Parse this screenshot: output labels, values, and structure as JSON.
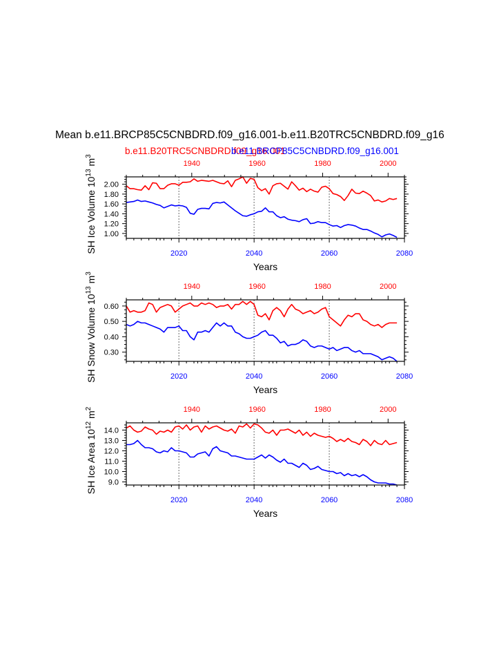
{
  "title": "Mean b.e11.BRCP85C5CNBDRD.f09_g16.001-b.e11.B20TRC5CNBDRD.f09_g16",
  "legend": {
    "red_label": "b.e11.B20TRC5CNBDRD.f09_g16.001",
    "blue_label": "b.e11.BRCP85C5CNBDRD.f09_g16.001"
  },
  "colors": {
    "red": "#ff0000",
    "blue": "#0000ff",
    "axis": "#000000",
    "ref_line": "#8c8c8c"
  },
  "chart_data": [
    {
      "type": "line",
      "ylabel_main": "SH Ice Volume 10",
      "ylabel_exp": "13",
      "ylabel_unit": " m",
      "ylabel_unit_exp": "3",
      "xlabel": "Years",
      "xlim": [
        2006,
        2080
      ],
      "top_xlim": [
        1920,
        2005
      ],
      "ylim": [
        0.9,
        2.15
      ],
      "yticks": [
        1.0,
        1.2,
        1.4,
        1.6,
        1.8,
        2.0
      ],
      "ytick_labels": [
        "1.00",
        "1.20",
        "1.40",
        "1.60",
        "1.80",
        "2.00"
      ],
      "bottom_ticks": [
        2020,
        2040,
        2060,
        2080
      ],
      "bottom_tick_labels": [
        "2020",
        "2040",
        "2060",
        "2080"
      ],
      "top_ticks": [
        1940,
        1960,
        1980,
        2000
      ],
      "top_tick_labels": [
        "1940",
        "1960",
        "1980",
        "2000"
      ],
      "ref_lines": [
        2020,
        2040,
        2060
      ],
      "series": [
        {
          "name": "b.e11.B20TRC5CNBDRD.f09_g16.001",
          "color": "red",
          "values": [
            1.97,
            1.91,
            1.91,
            1.89,
            1.88,
            1.97,
            1.89,
            2.03,
            2.02,
            1.91,
            1.91,
            1.98,
            2.01,
            2.01,
            1.98,
            2.04,
            2.04,
            2.05,
            2.11,
            2.06,
            2.08,
            2.07,
            2.06,
            2.08,
            2.05,
            2.02,
            2.01,
            2.07,
            1.95,
            2.08,
            2.11,
            2.15,
            2.02,
            2.12,
            2.1,
            1.93,
            1.87,
            1.91,
            1.8,
            1.97,
            2.01,
            2.02,
            1.96,
            1.9,
            2.05,
            1.97,
            1.88,
            1.92,
            1.85,
            1.9,
            1.86,
            1.84,
            1.94,
            1.96,
            1.91,
            1.81,
            1.79,
            1.75,
            1.67,
            1.77,
            1.9,
            1.82,
            1.81,
            1.86,
            1.82,
            1.77,
            1.66,
            1.68,
            1.64,
            1.66,
            1.71,
            1.69,
            1.71
          ]
        },
        {
          "name": "b.e11.BRCP85C5CNBDRD.f09_g16.001",
          "color": "blue",
          "values": [
            1.63,
            1.64,
            1.65,
            1.68,
            1.65,
            1.66,
            1.64,
            1.62,
            1.59,
            1.57,
            1.52,
            1.55,
            1.58,
            1.56,
            1.57,
            1.56,
            1.53,
            1.41,
            1.39,
            1.49,
            1.51,
            1.51,
            1.5,
            1.61,
            1.63,
            1.62,
            1.64,
            1.58,
            1.52,
            1.46,
            1.41,
            1.36,
            1.35,
            1.38,
            1.4,
            1.44,
            1.45,
            1.52,
            1.44,
            1.44,
            1.36,
            1.32,
            1.34,
            1.29,
            1.27,
            1.26,
            1.24,
            1.28,
            1.3,
            1.2,
            1.21,
            1.24,
            1.22,
            1.22,
            1.18,
            1.15,
            1.16,
            1.12,
            1.16,
            1.18,
            1.17,
            1.15,
            1.11,
            1.08,
            1.08,
            1.05,
            1.01,
            0.98,
            0.93,
            0.97,
            0.99,
            0.96,
            0.92
          ]
        }
      ]
    },
    {
      "type": "line",
      "ylabel_main": "SH Snow Volume 10",
      "ylabel_exp": "13",
      "ylabel_unit": " m",
      "ylabel_unit_exp": "3",
      "xlabel": "Years",
      "xlim": [
        2006,
        2080
      ],
      "top_xlim": [
        1920,
        2005
      ],
      "ylim": [
        0.24,
        0.64
      ],
      "yticks": [
        0.3,
        0.4,
        0.5,
        0.6
      ],
      "ytick_labels": [
        "0.30",
        "0.40",
        "0.50",
        "0.60"
      ],
      "bottom_ticks": [
        2020,
        2040,
        2060,
        2080
      ],
      "bottom_tick_labels": [
        "2020",
        "2040",
        "2060",
        "2080"
      ],
      "top_ticks": [
        1940,
        1960,
        1980,
        2000
      ],
      "top_tick_labels": [
        "1940",
        "1960",
        "1980",
        "2000"
      ],
      "ref_lines": [
        2020,
        2040,
        2060
      ],
      "series": [
        {
          "name": "b.e11.B20TRC5CNBDRD.f09_g16.001",
          "color": "red",
          "values": [
            0.6,
            0.56,
            0.57,
            0.56,
            0.56,
            0.57,
            0.62,
            0.61,
            0.56,
            0.59,
            0.6,
            0.61,
            0.6,
            0.56,
            0.58,
            0.6,
            0.61,
            0.62,
            0.6,
            0.6,
            0.62,
            0.61,
            0.62,
            0.61,
            0.59,
            0.6,
            0.6,
            0.61,
            0.58,
            0.61,
            0.61,
            0.63,
            0.61,
            0.63,
            0.61,
            0.54,
            0.53,
            0.55,
            0.51,
            0.57,
            0.59,
            0.57,
            0.53,
            0.58,
            0.61,
            0.58,
            0.57,
            0.55,
            0.56,
            0.57,
            0.55,
            0.56,
            0.58,
            0.59,
            0.53,
            0.51,
            0.49,
            0.47,
            0.51,
            0.54,
            0.53,
            0.55,
            0.55,
            0.51,
            0.5,
            0.48,
            0.47,
            0.48,
            0.46,
            0.48,
            0.49,
            0.49,
            0.49
          ]
        },
        {
          "name": "b.e11.BRCP85C5CNBDRD.f09_g16.001",
          "color": "blue",
          "values": [
            0.48,
            0.47,
            0.48,
            0.5,
            0.49,
            0.49,
            0.48,
            0.47,
            0.46,
            0.45,
            0.43,
            0.46,
            0.46,
            0.46,
            0.47,
            0.44,
            0.44,
            0.4,
            0.38,
            0.43,
            0.43,
            0.44,
            0.43,
            0.46,
            0.49,
            0.47,
            0.49,
            0.47,
            0.47,
            0.43,
            0.42,
            0.4,
            0.39,
            0.39,
            0.4,
            0.41,
            0.43,
            0.44,
            0.41,
            0.41,
            0.39,
            0.36,
            0.37,
            0.34,
            0.35,
            0.35,
            0.36,
            0.38,
            0.37,
            0.34,
            0.33,
            0.34,
            0.34,
            0.33,
            0.32,
            0.33,
            0.31,
            0.32,
            0.33,
            0.33,
            0.31,
            0.3,
            0.31,
            0.29,
            0.29,
            0.29,
            0.28,
            0.27,
            0.25,
            0.26,
            0.27,
            0.26,
            0.24
          ]
        }
      ]
    },
    {
      "type": "line",
      "ylabel_main": "SH Ice Area 10",
      "ylabel_exp": "12",
      "ylabel_unit": " m",
      "ylabel_unit_exp": "2",
      "xlabel": "Years",
      "xlim": [
        2006,
        2080
      ],
      "top_xlim": [
        1920,
        2005
      ],
      "ylim": [
        8.7,
        14.7
      ],
      "yticks": [
        9.0,
        10.0,
        11.0,
        12.0,
        13.0,
        14.0
      ],
      "ytick_labels": [
        "9.0",
        "10.0",
        "11.0",
        "12.0",
        "13.0",
        "14.0"
      ],
      "bottom_ticks": [
        2020,
        2040,
        2060,
        2080
      ],
      "bottom_tick_labels": [
        "2020",
        "2040",
        "2060",
        "2080"
      ],
      "top_ticks": [
        1940,
        1960,
        1980,
        2000
      ],
      "top_tick_labels": [
        "1940",
        "1960",
        "1980",
        "2000"
      ],
      "ref_lines": [
        2020,
        2040,
        2060
      ],
      "series": [
        {
          "name": "b.e11.B20TRC5CNBDRD.f09_g16.001",
          "color": "red",
          "values": [
            14.2,
            14.4,
            14.0,
            13.8,
            13.9,
            14.3,
            14.1,
            14.0,
            13.6,
            13.9,
            13.8,
            14.0,
            13.8,
            14.3,
            14.4,
            14.1,
            14.5,
            14.0,
            14.3,
            14.4,
            13.8,
            14.4,
            14.1,
            14.3,
            14.4,
            14.2,
            14.0,
            13.9,
            14.1,
            13.7,
            14.4,
            14.3,
            14.6,
            14.2,
            14.6,
            14.5,
            14.2,
            13.8,
            13.7,
            14.0,
            13.5,
            14.0,
            14.0,
            14.1,
            13.9,
            13.7,
            14.0,
            13.5,
            13.8,
            13.4,
            13.7,
            13.5,
            13.4,
            13.3,
            13.4,
            13.2,
            12.9,
            13.1,
            12.9,
            13.2,
            12.9,
            12.8,
            12.6,
            13.1,
            12.9,
            12.5,
            13.0,
            12.7,
            12.6,
            13.0,
            12.6,
            12.7,
            12.8
          ]
        },
        {
          "name": "b.e11.BRCP85C5CNBDRD.f09_g16.001",
          "color": "blue",
          "values": [
            12.6,
            12.6,
            12.7,
            13.0,
            12.6,
            12.3,
            12.3,
            12.2,
            11.9,
            11.8,
            12.0,
            11.9,
            12.3,
            12.0,
            12.0,
            11.9,
            11.8,
            11.4,
            11.4,
            11.7,
            11.8,
            11.9,
            11.5,
            12.2,
            12.4,
            12.0,
            11.9,
            11.8,
            11.5,
            11.5,
            11.4,
            11.3,
            11.2,
            11.2,
            11.2,
            11.4,
            11.6,
            11.3,
            11.6,
            11.4,
            11.1,
            10.9,
            11.2,
            10.8,
            10.8,
            10.6,
            10.4,
            10.8,
            10.6,
            10.2,
            10.3,
            10.5,
            10.2,
            10.1,
            10.0,
            10.0,
            9.8,
            9.9,
            9.6,
            9.8,
            9.6,
            9.7,
            9.5,
            9.7,
            9.5,
            9.2,
            9.0,
            8.9,
            8.9,
            8.9,
            8.8,
            8.8,
            8.7
          ]
        }
      ]
    }
  ]
}
